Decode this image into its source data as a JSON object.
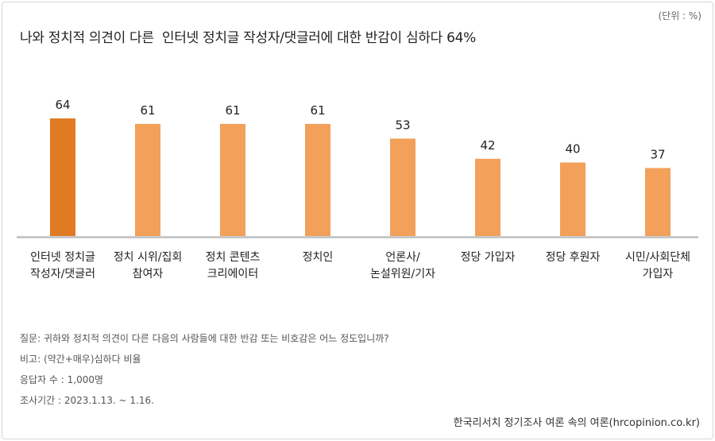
{
  "unit_label": "(단위 : %)",
  "title": "나와 정치적 의견이 다른  인터넷 정치글 작성자/댓글러에 대한 반감이 심하다 64%",
  "chart_data": {
    "type": "bar",
    "categories": [
      [
        "인터넷 정치글",
        "작성자/댓글러"
      ],
      [
        "정치 시위/집회",
        "참여자"
      ],
      [
        "정치 콘텐츠",
        "크리에이터"
      ],
      [
        "정치인"
      ],
      [
        "언론사/",
        "논설위원/기자"
      ],
      [
        "정당 가입자"
      ],
      [
        "정당 후원자"
      ],
      [
        "시민/사회단체",
        "가입자"
      ]
    ],
    "values": [
      64,
      61,
      61,
      61,
      53,
      42,
      40,
      37
    ],
    "ylim": [
      0,
      64
    ],
    "colors": {
      "highlight": "#E07B24",
      "bar": "#F2A05A",
      "baseline": "#c8c8c8"
    }
  },
  "notes": [
    "질문: 귀하와 정치적 의견이 다른 다음의 사람들에 대한 반감 또는 비호감은 어느 정도입니까?",
    "비고: (약간+매우)심하다 비율",
    "응답자 수 : 1,000명",
    "조사기간 : 2023.1.13. ~ 1.16."
  ],
  "source": "한국리서치 정기조사 여론 속의 여론(hrcopinion.co.kr)"
}
